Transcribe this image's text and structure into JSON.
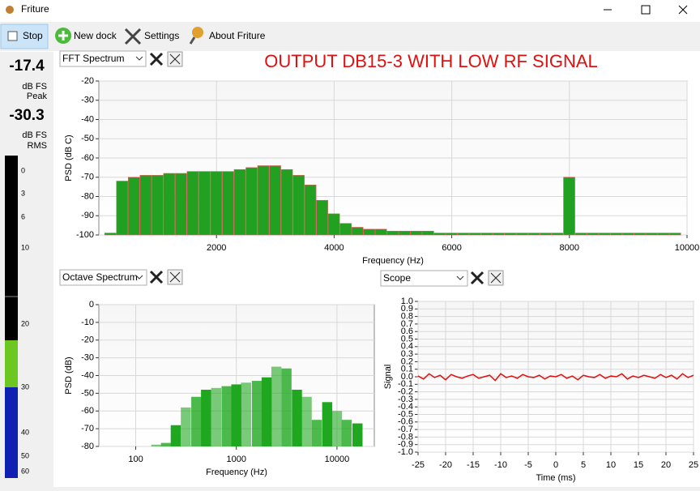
{
  "window": {
    "title": "Friture"
  },
  "toolbar": {
    "buttons": [
      "Stop",
      "New dock",
      "Settings",
      "About Friture"
    ]
  },
  "meter": {
    "peak": "-17.4",
    "peak_unit": "dB FS",
    "peak_label": "Peak",
    "rms": "-30.3",
    "rms_unit": "dB FS",
    "rms_label": "RMS",
    "scale": [
      0,
      3,
      6,
      10,
      20,
      30,
      40,
      50,
      60
    ]
  },
  "docks": [
    "FFT Spectrum",
    "Octave Spectrum",
    "Scope"
  ],
  "chart_data": [
    {
      "type": "bar",
      "annotation": "OUTPUT DB15-3 WITH LOW RF SIGNAL",
      "x_label": "Frequency (Hz)",
      "y_label": "PSD (dB C)",
      "x": [
        200,
        400,
        600,
        800,
        1000,
        1200,
        1400,
        1600,
        1800,
        2000,
        2200,
        2400,
        2600,
        2800,
        3000,
        3200,
        3400,
        3600,
        3800,
        4000,
        4200,
        4400,
        4600,
        4800,
        5000,
        5200,
        5400,
        5600,
        5800,
        6000,
        6200,
        6400,
        6600,
        6800,
        7000,
        7200,
        7400,
        7600,
        7800,
        8000,
        8200,
        8400,
        8600,
        8800,
        9000,
        9200,
        9400,
        9600,
        9800
      ],
      "values": [
        -99,
        -72,
        -70,
        -69,
        -69,
        -68,
        -68,
        -67,
        -67,
        -67,
        -67,
        -66,
        -65,
        -64,
        -64,
        -66,
        -69,
        -74,
        -82,
        -89,
        -94,
        -96,
        -97,
        -97,
        -98,
        -98,
        -98,
        -98,
        -99,
        -99,
        -99,
        -99,
        -99,
        -99,
        -99,
        -99,
        -99,
        -99,
        -99,
        -70,
        -99,
        -99,
        -99,
        -99,
        -99,
        -99,
        -99,
        -99,
        -99
      ],
      "color": "#22a022",
      "xlim": [
        0,
        10000
      ],
      "ylim": [
        -100,
        -20
      ],
      "xticks": [
        2000,
        4000,
        6000,
        8000,
        10000
      ],
      "yticks": [
        -20,
        -30,
        -40,
        -50,
        -60,
        -70,
        -80,
        -90,
        -100
      ],
      "grid": true
    },
    {
      "type": "octave",
      "x_label": "Frequency (Hz)",
      "y_label": "PSD (dB)",
      "x_scale": "log",
      "x": [
        160,
        200,
        250,
        315,
        400,
        500,
        630,
        800,
        1000,
        1250,
        1600,
        2000,
        2500,
        3150,
        4000,
        5000,
        6300,
        8000,
        10000,
        12500,
        16000
      ],
      "values": [
        -79,
        -78,
        -68,
        -58,
        -52,
        -48,
        -47,
        -46,
        -45,
        -44,
        -43,
        -41,
        -35,
        -36,
        -48,
        -52,
        -65,
        -55,
        -60,
        -65,
        -67
      ],
      "color": "#1fa81f",
      "xlim": [
        43,
        23500
      ],
      "ylim": [
        -80,
        0
      ],
      "xticks": [
        100,
        1000,
        10000
      ],
      "yticks": [
        0,
        -10,
        -20,
        -30,
        -40,
        -50,
        -60,
        -70,
        -80
      ],
      "grid": true
    },
    {
      "type": "line",
      "x_label": "Time (ms)",
      "y_label": "Signal",
      "x": [
        -25,
        -24,
        -23,
        -22,
        -21,
        -20,
        -19,
        -18,
        -17,
        -16,
        -15,
        -14,
        -13,
        -12,
        -11,
        -10,
        -9,
        -8,
        -7,
        -6,
        -5,
        -4,
        -3,
        -2,
        -1,
        0,
        1,
        2,
        3,
        4,
        5,
        6,
        7,
        8,
        9,
        10,
        11,
        12,
        13,
        14,
        15,
        16,
        17,
        18,
        19,
        20,
        21,
        22,
        23,
        24,
        25
      ],
      "values": [
        0.01,
        -0.03,
        0.04,
        -0.01,
        0.02,
        -0.04,
        0.03,
        0.0,
        -0.02,
        0.01,
        0.03,
        -0.02,
        0.0,
        0.02,
        -0.05,
        0.04,
        -0.01,
        0.01,
        -0.02,
        0.03,
        0.0,
        -0.01,
        0.02,
        -0.03,
        0.01,
        0.0,
        0.03,
        -0.02,
        0.01,
        -0.04,
        0.02,
        0.0,
        -0.01,
        0.03,
        -0.02,
        0.01,
        0.0,
        0.04,
        -0.03,
        0.01,
        -0.01,
        0.02,
        0.0,
        -0.02,
        0.03,
        -0.01,
        0.02,
        -0.03,
        0.04,
        -0.01,
        0.02
      ],
      "color": "#e01010",
      "xlim": [
        -25,
        25
      ],
      "ylim": [
        -1,
        1
      ],
      "xticks": [
        -25,
        -20,
        -15,
        -10,
        -5,
        0,
        5,
        10,
        15,
        20,
        25
      ],
      "yticks": [
        {
          "value": 1,
          "label": "1.0"
        },
        0.9,
        0.8,
        0.7,
        0.6,
        0.5,
        0.4,
        0.3,
        0.2,
        0.1,
        {
          "value": 0,
          "label": "0.0"
        },
        -0.1,
        -0.2,
        -0.3,
        -0.4,
        -0.5,
        -0.6,
        -0.7,
        -0.8,
        -0.9,
        {
          "value": -1,
          "label": "-1.0"
        }
      ],
      "grid": true
    }
  ]
}
